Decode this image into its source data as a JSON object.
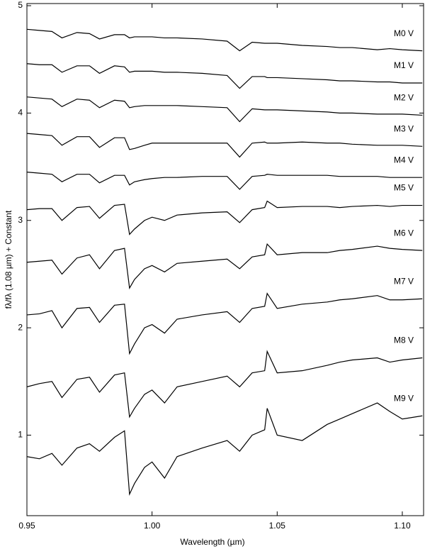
{
  "chart_data": {
    "type": "line",
    "xlabel": "Wavelength (µm)",
    "ylabel": "fλ/fλ (1.08 µm) + Constant",
    "xlim": [
      0.95,
      1.1085
    ],
    "ylim": [
      0.25,
      5.02
    ],
    "xticks": [
      0.95,
      {
        "value": 1,
        "label": "1.00"
      },
      1.05,
      {
        "value": 1.1,
        "label": "1.10"
      }
    ],
    "yticks": [
      1,
      2,
      3,
      4,
      5
    ],
    "x": [
      0.95,
      0.955,
      0.96,
      0.964,
      0.97,
      0.975,
      0.979,
      0.985,
      0.989,
      0.991,
      0.993,
      0.997,
      1.0,
      1.005,
      1.01,
      1.02,
      1.03,
      1.035,
      1.04,
      1.045,
      1.046,
      1.05,
      1.06,
      1.07,
      1.075,
      1.08,
      1.09,
      1.095,
      1.1,
      1.108
    ],
    "series": [
      {
        "name": "M0 V",
        "color": "#000000",
        "values": [
          4.78,
          4.77,
          4.76,
          4.7,
          4.75,
          4.74,
          4.69,
          4.73,
          4.73,
          4.7,
          4.71,
          4.71,
          4.71,
          4.7,
          4.7,
          4.69,
          4.67,
          4.58,
          4.66,
          4.65,
          4.65,
          4.65,
          4.63,
          4.62,
          4.61,
          4.61,
          4.59,
          4.6,
          4.59,
          4.58
        ]
      },
      {
        "name": "M1 V",
        "color": "#000000",
        "values": [
          4.46,
          4.45,
          4.45,
          4.38,
          4.44,
          4.44,
          4.37,
          4.44,
          4.43,
          4.38,
          4.39,
          4.39,
          4.39,
          4.38,
          4.38,
          4.37,
          4.35,
          4.23,
          4.34,
          4.34,
          4.33,
          4.33,
          4.32,
          4.31,
          4.3,
          4.3,
          4.29,
          4.29,
          4.28,
          4.28
        ]
      },
      {
        "name": "M2 V",
        "color": "#000000",
        "values": [
          4.15,
          4.14,
          4.13,
          4.06,
          4.13,
          4.12,
          4.05,
          4.12,
          4.11,
          4.05,
          4.06,
          4.07,
          4.07,
          4.07,
          4.07,
          4.06,
          4.05,
          3.92,
          4.04,
          4.03,
          4.03,
          4.03,
          4.02,
          4.01,
          4.0,
          4.0,
          3.99,
          3.99,
          3.99,
          3.98
        ]
      },
      {
        "name": "M3 V",
        "color": "#000000",
        "values": [
          3.81,
          3.8,
          3.79,
          3.7,
          3.78,
          3.78,
          3.68,
          3.77,
          3.77,
          3.66,
          3.67,
          3.7,
          3.72,
          3.72,
          3.72,
          3.72,
          3.72,
          3.59,
          3.72,
          3.73,
          3.72,
          3.72,
          3.73,
          3.72,
          3.72,
          3.71,
          3.7,
          3.7,
          3.7,
          3.69
        ]
      },
      {
        "name": "M4 V",
        "color": "#000000",
        "values": [
          3.45,
          3.44,
          3.43,
          3.36,
          3.43,
          3.43,
          3.35,
          3.42,
          3.42,
          3.33,
          3.36,
          3.38,
          3.39,
          3.4,
          3.4,
          3.41,
          3.41,
          3.29,
          3.41,
          3.42,
          3.43,
          3.42,
          3.42,
          3.42,
          3.41,
          3.41,
          3.41,
          3.4,
          3.4,
          3.4
        ]
      },
      {
        "name": "M5 V",
        "color": "#000000",
        "values": [
          3.1,
          3.11,
          3.11,
          3.0,
          3.12,
          3.13,
          3.02,
          3.14,
          3.15,
          2.87,
          2.92,
          3.0,
          3.03,
          3.0,
          3.05,
          3.07,
          3.08,
          2.98,
          3.1,
          3.12,
          3.18,
          3.12,
          3.13,
          3.13,
          3.12,
          3.13,
          3.14,
          3.13,
          3.14,
          3.14
        ]
      },
      {
        "name": "M6 V",
        "color": "#000000",
        "values": [
          2.61,
          2.62,
          2.63,
          2.5,
          2.65,
          2.68,
          2.55,
          2.72,
          2.74,
          2.37,
          2.45,
          2.55,
          2.58,
          2.52,
          2.6,
          2.62,
          2.64,
          2.55,
          2.66,
          2.68,
          2.78,
          2.68,
          2.7,
          2.7,
          2.72,
          2.73,
          2.76,
          2.74,
          2.73,
          2.72
        ]
      },
      {
        "name": "M7 V",
        "color": "#000000",
        "values": [
          2.12,
          2.13,
          2.16,
          2.0,
          2.18,
          2.19,
          2.05,
          2.21,
          2.22,
          1.76,
          1.85,
          2.0,
          2.03,
          1.95,
          2.08,
          2.12,
          2.15,
          2.05,
          2.18,
          2.2,
          2.32,
          2.18,
          2.22,
          2.24,
          2.26,
          2.27,
          2.3,
          2.26,
          2.26,
          2.27
        ]
      },
      {
        "name": "M8 V",
        "color": "#000000",
        "values": [
          1.45,
          1.48,
          1.5,
          1.35,
          1.52,
          1.54,
          1.4,
          1.56,
          1.58,
          1.17,
          1.25,
          1.38,
          1.42,
          1.3,
          1.45,
          1.5,
          1.55,
          1.45,
          1.58,
          1.6,
          1.78,
          1.58,
          1.6,
          1.65,
          1.68,
          1.7,
          1.72,
          1.68,
          1.7,
          1.72
        ]
      },
      {
        "name": "M9 V",
        "color": "#000000",
        "values": [
          0.8,
          0.78,
          0.83,
          0.72,
          0.88,
          0.92,
          0.85,
          0.98,
          1.04,
          0.45,
          0.55,
          0.7,
          0.75,
          0.6,
          0.8,
          0.88,
          0.95,
          0.85,
          1.0,
          1.05,
          1.25,
          1.0,
          0.95,
          1.1,
          1.15,
          1.2,
          1.3,
          1.22,
          1.15,
          1.18
        ]
      }
    ]
  }
}
